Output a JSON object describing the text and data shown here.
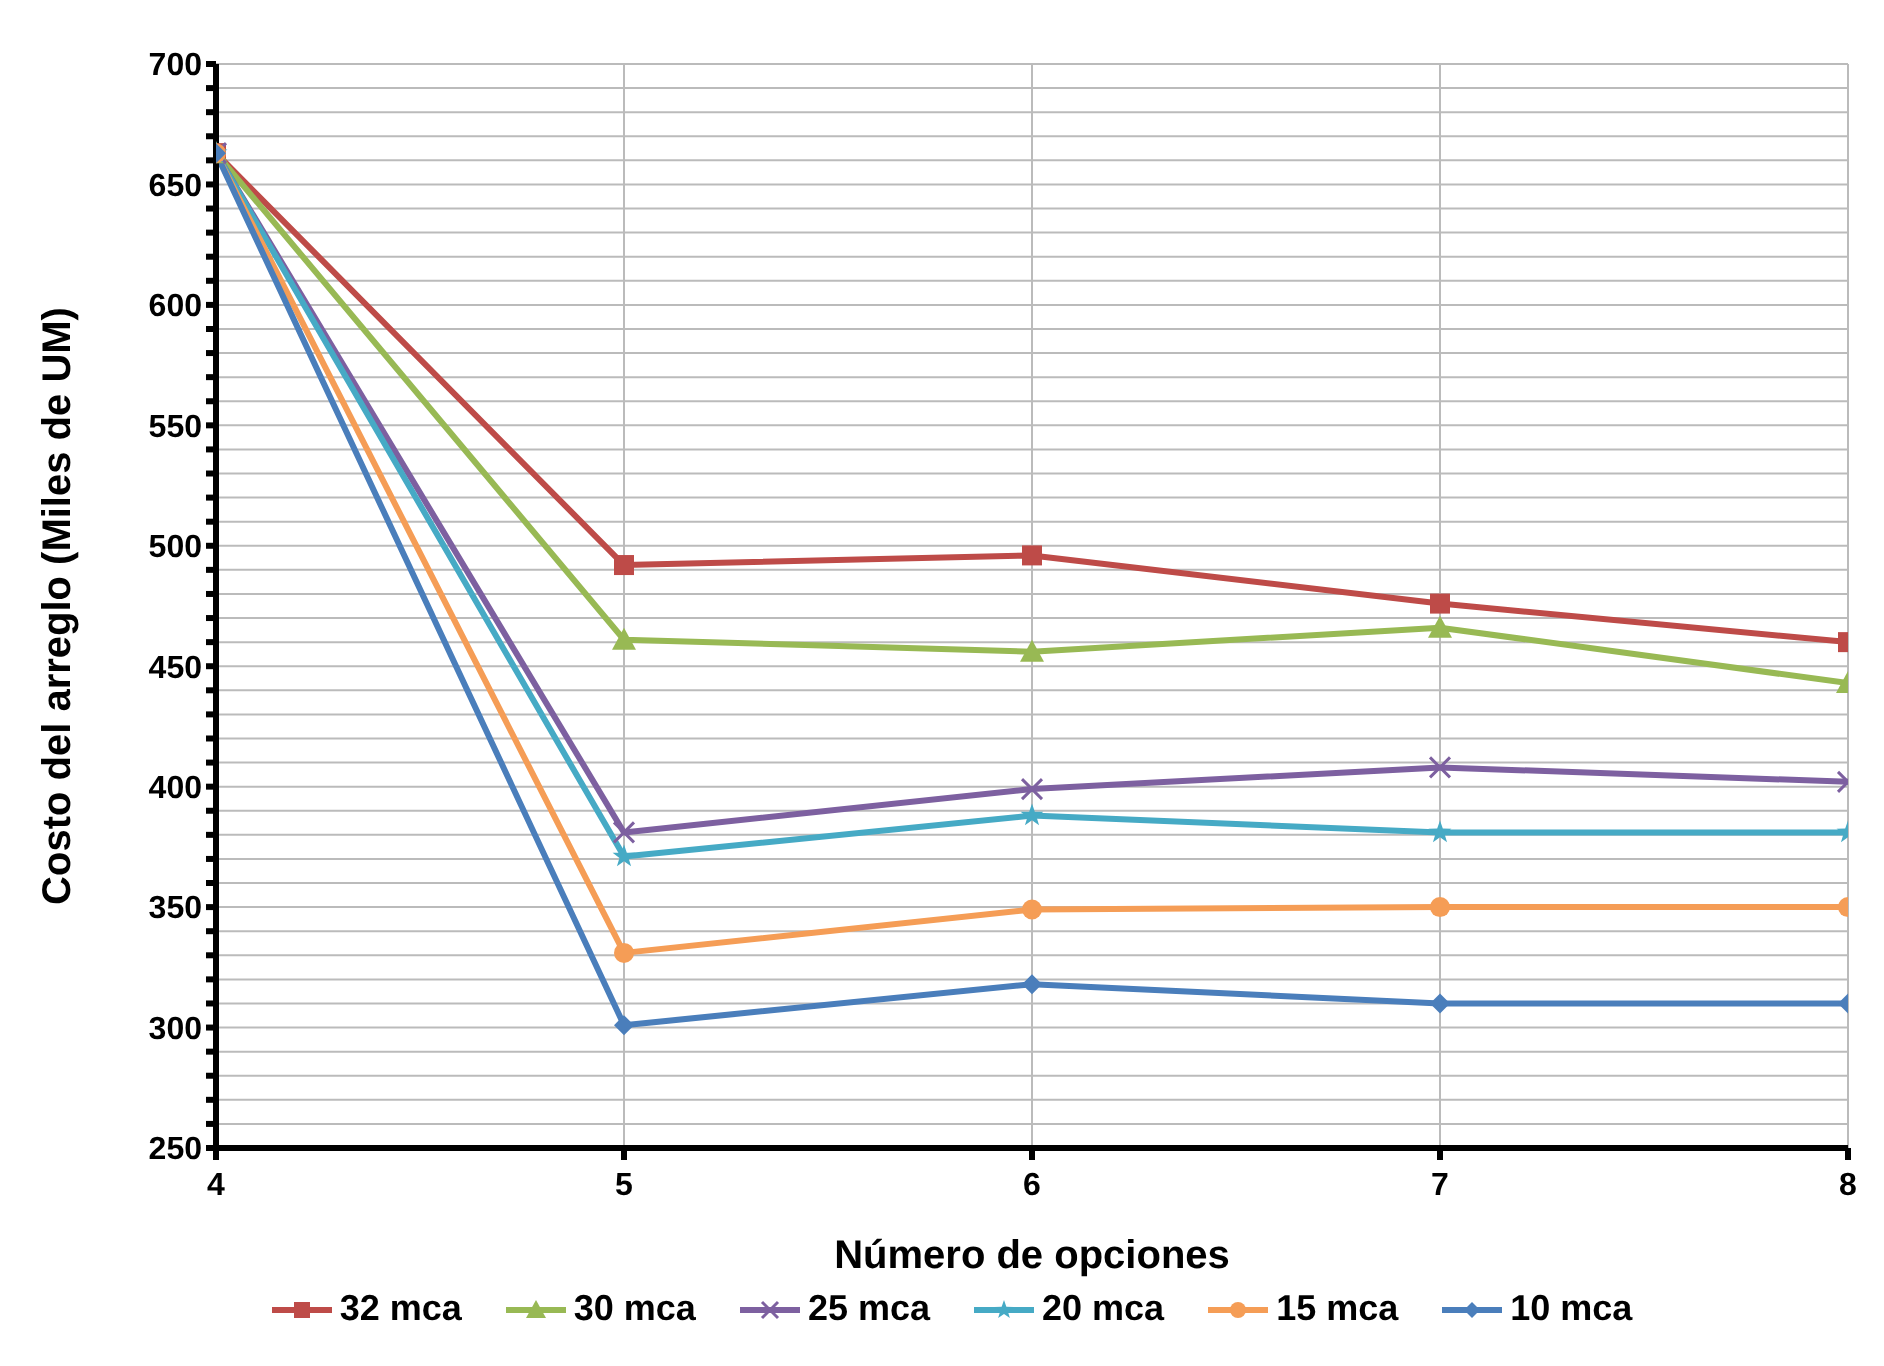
{
  "chart_data": {
    "type": "line",
    "xlabel": "Número de opciones",
    "ylabel": "Costo del arreglo (Miles de UM)",
    "x": [
      4,
      5,
      6,
      7,
      8
    ],
    "xlim": [
      4,
      8
    ],
    "xticks": [
      4,
      5,
      6,
      7,
      8
    ],
    "ylim": [
      250,
      700
    ],
    "yticks": [
      250,
      {
        "value": 260,
        "label": null
      },
      {
        "value": 270,
        "label": null
      },
      {
        "value": 280,
        "label": null
      },
      {
        "value": 290,
        "label": null
      },
      300,
      {
        "value": 310,
        "label": null
      },
      {
        "value": 320,
        "label": null
      },
      {
        "value": 330,
        "label": null
      },
      {
        "value": 340,
        "label": null
      },
      350,
      {
        "value": 360,
        "label": null
      },
      {
        "value": 370,
        "label": null
      },
      {
        "value": 380,
        "label": null
      },
      {
        "value": 390,
        "label": null
      },
      400,
      {
        "value": 410,
        "label": null
      },
      {
        "value": 420,
        "label": null
      },
      {
        "value": 430,
        "label": null
      },
      {
        "value": 440,
        "label": null
      },
      450,
      {
        "value": 460,
        "label": null
      },
      {
        "value": 470,
        "label": null
      },
      {
        "value": 480,
        "label": null
      },
      {
        "value": 490,
        "label": null
      },
      500,
      {
        "value": 510,
        "label": null
      },
      {
        "value": 520,
        "label": null
      },
      {
        "value": 530,
        "label": null
      },
      {
        "value": 540,
        "label": null
      },
      550,
      {
        "value": 560,
        "label": null
      },
      {
        "value": 570,
        "label": null
      },
      {
        "value": 580,
        "label": null
      },
      {
        "value": 590,
        "label": null
      },
      600,
      {
        "value": 610,
        "label": null
      },
      {
        "value": 620,
        "label": null
      },
      {
        "value": 630,
        "label": null
      },
      {
        "value": 640,
        "label": null
      },
      650,
      {
        "value": 660,
        "label": null
      },
      {
        "value": 670,
        "label": null
      },
      {
        "value": 680,
        "label": null
      },
      {
        "value": 690,
        "label": null
      },
      700
    ],
    "grid": true,
    "legend": "bottom",
    "line_style": "solid",
    "series": [
      {
        "name": "32 mca",
        "color": "#be4b48",
        "marker": "square",
        "values": [
          663,
          492,
          496,
          476,
          460
        ]
      },
      {
        "name": "30 mca",
        "color": "#98b954",
        "marker": "triangle",
        "values": [
          663,
          461,
          456,
          466,
          443
        ]
      },
      {
        "name": "25 mca",
        "color": "#7d60a0",
        "marker": "cross",
        "values": [
          663,
          381,
          399,
          408,
          402
        ]
      },
      {
        "name": "20 mca",
        "color": "#46aac5",
        "marker": "star",
        "values": [
          663,
          371,
          388,
          381,
          381
        ]
      },
      {
        "name": "15 mca",
        "color": "#f59d56",
        "marker": "circle",
        "values": [
          663,
          331,
          349,
          350,
          350
        ]
      },
      {
        "name": "10 mca",
        "color": "#4a7ebb",
        "marker": "diamond",
        "values": [
          663,
          301,
          318,
          310,
          310
        ]
      }
    ]
  }
}
